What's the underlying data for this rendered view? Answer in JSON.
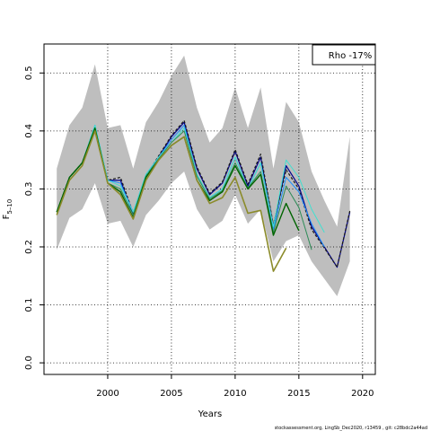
{
  "chart_data": {
    "type": "line",
    "xlabel": "Years",
    "ylabel": "F5–10",
    "ylabel_main": "F",
    "ylabel_sub": "5–10",
    "legend_text": "Rho -17%",
    "legend_position": "top-right",
    "xlim": [
      1995,
      2021
    ],
    "ylim": [
      -0.02,
      0.55
    ],
    "xticks": [
      2000,
      2005,
      2010,
      2015,
      2020
    ],
    "yticks": [
      0.0,
      0.1,
      0.2,
      0.3,
      0.4,
      0.5
    ],
    "xtick_labels": [
      "2000",
      "2005",
      "2010",
      "2015",
      "2020"
    ],
    "ytick_labels": [
      "0.0",
      "0.1",
      "0.2",
      "0.3",
      "0.4",
      "0.5"
    ],
    "grid": "dotted",
    "band": {
      "name": "confidence interval",
      "color": "#bebebe",
      "x": [
        1996,
        1997,
        1998,
        1999,
        2000,
        2001,
        2002,
        2003,
        2004,
        2005,
        2006,
        2007,
        2008,
        2009,
        2010,
        2011,
        2012,
        2013,
        2014,
        2015,
        2016,
        2017,
        2018,
        2019
      ],
      "upper": [
        0.335,
        0.41,
        0.44,
        0.515,
        0.405,
        0.41,
        0.335,
        0.415,
        0.45,
        0.495,
        0.53,
        0.44,
        0.38,
        0.405,
        0.475,
        0.405,
        0.475,
        0.335,
        0.45,
        0.415,
        0.33,
        0.28,
        0.235,
        0.39
      ],
      "lower": [
        0.195,
        0.25,
        0.265,
        0.31,
        0.24,
        0.245,
        0.2,
        0.255,
        0.28,
        0.31,
        0.33,
        0.265,
        0.23,
        0.245,
        0.29,
        0.24,
        0.265,
        0.175,
        0.21,
        0.22,
        0.175,
        0.145,
        0.115,
        0.175
      ]
    },
    "series": [
      {
        "color": "#00008b",
        "width": 1.2,
        "x": [
          1996,
          1997,
          1998,
          1999,
          2000,
          2001,
          2002,
          2003,
          2004,
          2005,
          2006,
          2007,
          2008,
          2009,
          2010,
          2011,
          2012,
          2013,
          2014,
          2015,
          2016,
          2017,
          2018,
          2019
        ],
        "values": [
          0.26,
          0.32,
          0.345,
          0.405,
          0.315,
          0.315,
          0.255,
          0.32,
          0.355,
          0.39,
          0.415,
          0.335,
          0.29,
          0.31,
          0.365,
          0.305,
          0.355,
          0.235,
          0.34,
          0.305,
          0.235,
          0.2,
          0.165,
          0.26
        ]
      },
      {
        "color": "#1a1a1a",
        "width": 1.2,
        "dashed": true,
        "x": [
          1996,
          1997,
          1998,
          1999,
          2000,
          2001,
          2002,
          2003,
          2004,
          2005,
          2006,
          2007,
          2008,
          2009,
          2010,
          2011,
          2012,
          2013,
          2014,
          2015,
          2016,
          2017,
          2018,
          2019
        ],
        "values": [
          0.26,
          0.32,
          0.345,
          0.405,
          0.315,
          0.32,
          0.258,
          0.322,
          0.357,
          0.392,
          0.418,
          0.338,
          0.292,
          0.312,
          0.368,
          0.308,
          0.36,
          0.238,
          0.333,
          0.3,
          0.23,
          0.198,
          0.165,
          0.262
        ]
      },
      {
        "color": "#1e90ff",
        "width": 1.0,
        "x": [
          1996,
          1997,
          1998,
          1999,
          2000,
          2001,
          2002,
          2003,
          2004,
          2005,
          2006,
          2007,
          2008,
          2009,
          2010,
          2011,
          2012,
          2013,
          2014,
          2015,
          2016,
          2017
        ],
        "values": [
          0.26,
          0.32,
          0.345,
          0.41,
          0.315,
          0.31,
          0.26,
          0.325,
          0.355,
          0.385,
          0.41,
          0.325,
          0.285,
          0.3,
          0.355,
          0.3,
          0.345,
          0.23,
          0.32,
          0.295,
          0.24,
          0.2
        ]
      },
      {
        "color": "#40e0d0",
        "width": 1.0,
        "x": [
          1996,
          1997,
          1998,
          1999,
          2000,
          2001,
          2002,
          2003,
          2004,
          2005,
          2006,
          2007,
          2008,
          2009,
          2010,
          2011,
          2012,
          2013,
          2014,
          2015,
          2016,
          2017
        ],
        "values": [
          0.26,
          0.32,
          0.345,
          0.41,
          0.315,
          0.305,
          0.26,
          0.325,
          0.355,
          0.38,
          0.405,
          0.325,
          0.285,
          0.3,
          0.355,
          0.3,
          0.345,
          0.235,
          0.35,
          0.32,
          0.265,
          0.225
        ]
      },
      {
        "color": "#2e8b57",
        "width": 1.0,
        "x": [
          1996,
          1997,
          1998,
          1999,
          2000,
          2001,
          2002,
          2003,
          2004,
          2005,
          2006,
          2007,
          2008,
          2009,
          2010,
          2011,
          2012,
          2013,
          2014,
          2015,
          2016
        ],
        "values": [
          0.26,
          0.32,
          0.345,
          0.405,
          0.31,
          0.3,
          0.255,
          0.322,
          0.352,
          0.38,
          0.4,
          0.322,
          0.283,
          0.297,
          0.345,
          0.302,
          0.33,
          0.225,
          0.305,
          0.268,
          0.195
        ]
      },
      {
        "color": "#006400",
        "width": 1.4,
        "x": [
          1996,
          1997,
          1998,
          1999,
          2000,
          2001,
          2002,
          2003,
          2004,
          2005,
          2006,
          2007,
          2008,
          2009,
          2010,
          2011,
          2012,
          2013,
          2014,
          2015
        ],
        "values": [
          0.26,
          0.32,
          0.345,
          0.405,
          0.31,
          0.295,
          0.25,
          0.32,
          0.35,
          0.375,
          0.39,
          0.315,
          0.28,
          0.295,
          0.34,
          0.3,
          0.325,
          0.22,
          0.275,
          0.228
        ]
      },
      {
        "color": "#8b8b2a",
        "width": 1.6,
        "x": [
          1996,
          1997,
          1998,
          1999,
          2000,
          2001,
          2002,
          2003,
          2004,
          2005,
          2006,
          2007,
          2008,
          2009,
          2010,
          2011,
          2012,
          2013,
          2014
        ],
        "values": [
          0.255,
          0.315,
          0.34,
          0.4,
          0.31,
          0.29,
          0.248,
          0.315,
          0.35,
          0.375,
          0.39,
          0.315,
          0.275,
          0.285,
          0.32,
          0.258,
          0.263,
          0.158,
          0.198
        ]
      }
    ]
  },
  "footer_text": "stockassessment.org, LingSb_Dec2020, r13459 , git: c28bdc2a44ad"
}
